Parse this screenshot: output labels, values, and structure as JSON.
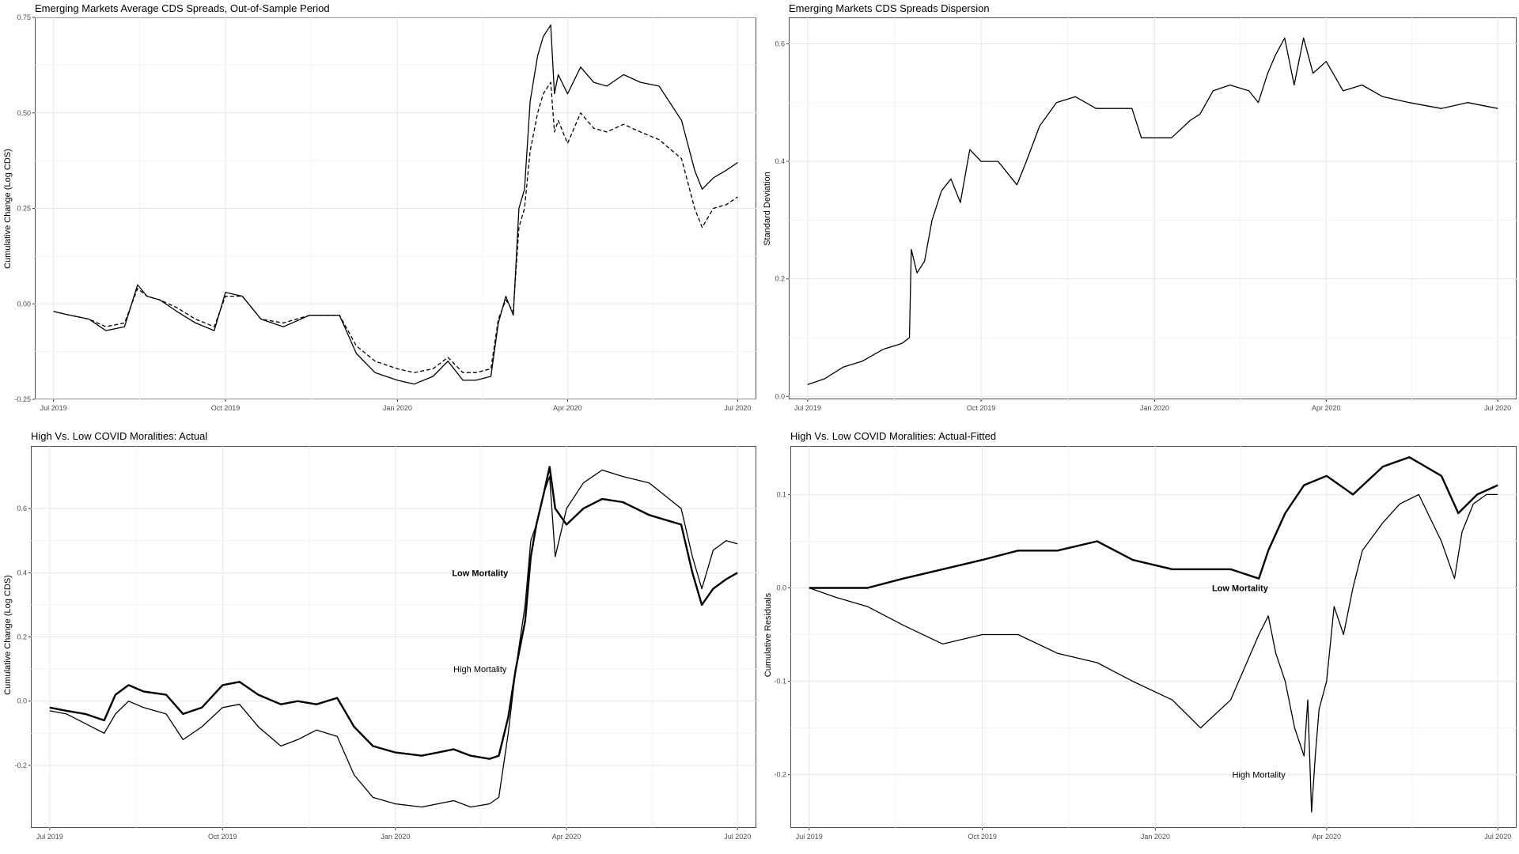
{
  "chart_data": [
    {
      "type": "line",
      "title": "Emerging Markets Average CDS Spreads, Out-of-Sample Period",
      "xlabel": "",
      "ylabel": "Cumulative Change (Log CDS)",
      "x_ticks": [
        "Jul 2019",
        "Oct 2019",
        "Jan 2020",
        "Apr 2020",
        "Jul 2020"
      ],
      "y_ticks": [
        "-0.25",
        "0.00",
        "0.25",
        "0.50",
        "0.75"
      ],
      "xlim": [
        "2019-06-21",
        "2020-07-11"
      ],
      "ylim": [
        -0.25,
        0.75
      ],
      "grid": true,
      "series": [
        {
          "style": "solid",
          "width": 1.3,
          "x": [
            "2019-07-01",
            "2019-07-10",
            "2019-07-20",
            "2019-07-29",
            "2019-08-08",
            "2019-08-15",
            "2019-08-20",
            "2019-08-27",
            "2019-09-05",
            "2019-09-15",
            "2019-09-25",
            "2019-10-01",
            "2019-10-10",
            "2019-10-20",
            "2019-11-01",
            "2019-11-15",
            "2019-12-01",
            "2019-12-10",
            "2019-12-20",
            "2020-01-01",
            "2020-01-10",
            "2020-01-20",
            "2020-01-28",
            "2020-02-05",
            "2020-02-12",
            "2020-02-20",
            "2020-02-24",
            "2020-02-28",
            "2020-03-03",
            "2020-03-06",
            "2020-03-09",
            "2020-03-12",
            "2020-03-16",
            "2020-03-19",
            "2020-03-23",
            "2020-03-25",
            "2020-03-27",
            "2020-04-01",
            "2020-04-08",
            "2020-04-15",
            "2020-04-22",
            "2020-05-01",
            "2020-05-10",
            "2020-05-20",
            "2020-06-01",
            "2020-06-08",
            "2020-06-12",
            "2020-06-18",
            "2020-06-25",
            "2020-07-01"
          ],
          "y": [
            -0.02,
            -0.03,
            -0.04,
            -0.07,
            -0.06,
            0.05,
            0.02,
            0.01,
            -0.02,
            -0.05,
            -0.07,
            0.03,
            0.02,
            -0.04,
            -0.06,
            -0.03,
            -0.03,
            -0.13,
            -0.18,
            -0.2,
            -0.21,
            -0.19,
            -0.15,
            -0.2,
            -0.2,
            -0.19,
            -0.05,
            0.02,
            -0.03,
            0.25,
            0.3,
            0.53,
            0.65,
            0.7,
            0.73,
            0.55,
            0.6,
            0.55,
            0.62,
            0.58,
            0.57,
            0.6,
            0.58,
            0.57,
            0.48,
            0.35,
            0.3,
            0.33,
            0.35,
            0.37
          ]
        },
        {
          "style": "dashed",
          "width": 1.3,
          "x": [
            "2019-07-01",
            "2019-07-10",
            "2019-07-20",
            "2019-07-29",
            "2019-08-08",
            "2019-08-15",
            "2019-08-20",
            "2019-08-27",
            "2019-09-05",
            "2019-09-15",
            "2019-09-25",
            "2019-10-01",
            "2019-10-10",
            "2019-10-20",
            "2019-11-01",
            "2019-11-15",
            "2019-12-01",
            "2019-12-10",
            "2019-12-20",
            "2020-01-01",
            "2020-01-10",
            "2020-01-20",
            "2020-01-28",
            "2020-02-05",
            "2020-02-12",
            "2020-02-20",
            "2020-02-24",
            "2020-02-28",
            "2020-03-03",
            "2020-03-06",
            "2020-03-09",
            "2020-03-12",
            "2020-03-16",
            "2020-03-19",
            "2020-03-23",
            "2020-03-25",
            "2020-03-27",
            "2020-04-01",
            "2020-04-08",
            "2020-04-15",
            "2020-04-22",
            "2020-05-01",
            "2020-05-10",
            "2020-05-20",
            "2020-06-01",
            "2020-06-08",
            "2020-06-12",
            "2020-06-18",
            "2020-06-25",
            "2020-07-01"
          ],
          "y": [
            -0.02,
            -0.03,
            -0.04,
            -0.06,
            -0.05,
            0.04,
            0.02,
            0.01,
            -0.01,
            -0.04,
            -0.06,
            0.02,
            0.02,
            -0.04,
            -0.05,
            -0.03,
            -0.03,
            -0.11,
            -0.15,
            -0.17,
            -0.18,
            -0.17,
            -0.14,
            -0.18,
            -0.18,
            -0.17,
            -0.04,
            0.01,
            -0.02,
            0.2,
            0.25,
            0.4,
            0.5,
            0.55,
            0.58,
            0.45,
            0.48,
            0.42,
            0.5,
            0.46,
            0.45,
            0.47,
            0.45,
            0.43,
            0.38,
            0.25,
            0.2,
            0.25,
            0.26,
            0.28
          ]
        }
      ]
    },
    {
      "type": "line",
      "title": "Emerging Markets CDS Spreads Dispersion",
      "xlabel": "",
      "ylabel": "Standard Deviation",
      "x_ticks": [
        "Jul 2019",
        "Oct 2019",
        "Jan 2020",
        "Apr 2020",
        "Jul 2020"
      ],
      "y_ticks": [
        "0.0",
        "0.2",
        "0.4",
        "0.6"
      ],
      "xlim": [
        "2019-06-21",
        "2020-07-11"
      ],
      "ylim": [
        -0.005,
        0.645
      ],
      "grid": true,
      "series": [
        {
          "style": "solid",
          "width": 1.3,
          "x": [
            "2019-07-01",
            "2019-07-10",
            "2019-07-20",
            "2019-07-30",
            "2019-08-10",
            "2019-08-20",
            "2019-08-24",
            "2019-08-25",
            "2019-08-28",
            "2019-09-01",
            "2019-09-05",
            "2019-09-10",
            "2019-09-15",
            "2019-09-20",
            "2019-09-25",
            "2019-10-01",
            "2019-10-10",
            "2019-10-20",
            "2019-10-25",
            "2019-11-01",
            "2019-11-10",
            "2019-11-20",
            "2019-12-01",
            "2019-12-10",
            "2019-12-20",
            "2019-12-25",
            "2020-01-01",
            "2020-01-10",
            "2020-01-20",
            "2020-01-25",
            "2020-02-01",
            "2020-02-10",
            "2020-02-20",
            "2020-02-25",
            "2020-03-01",
            "2020-03-05",
            "2020-03-10",
            "2020-03-15",
            "2020-03-20",
            "2020-03-25",
            "2020-04-01",
            "2020-04-10",
            "2020-04-20",
            "2020-05-01",
            "2020-05-15",
            "2020-06-01",
            "2020-06-15",
            "2020-07-01"
          ],
          "y": [
            0.02,
            0.03,
            0.05,
            0.06,
            0.08,
            0.09,
            0.1,
            0.25,
            0.21,
            0.23,
            0.3,
            0.35,
            0.37,
            0.33,
            0.42,
            0.4,
            0.4,
            0.36,
            0.4,
            0.46,
            0.5,
            0.51,
            0.49,
            0.49,
            0.49,
            0.44,
            0.44,
            0.44,
            0.47,
            0.48,
            0.52,
            0.53,
            0.52,
            0.5,
            0.55,
            0.58,
            0.61,
            0.53,
            0.61,
            0.55,
            0.57,
            0.52,
            0.53,
            0.51,
            0.5,
            0.49,
            0.5,
            0.49
          ]
        }
      ]
    },
    {
      "type": "line",
      "title": "High Vs. Low COVID Moralities: Actual",
      "xlabel": "",
      "ylabel": "Cumulative Change (Log CDS)",
      "x_ticks": [
        "Jul 2019",
        "Oct 2019",
        "Jan 2020",
        "Apr 2020",
        "Jul 2020"
      ],
      "y_ticks": [
        "-0.2",
        "0.0",
        "0.2",
        "0.4",
        "0.6"
      ],
      "xlim": [
        "2019-06-21",
        "2020-07-11"
      ],
      "ylim": [
        -0.395,
        0.795
      ],
      "grid": true,
      "annotations": [
        {
          "text": "Low Mortality",
          "x": "2020-02-15",
          "y": 0.4,
          "bold": true
        },
        {
          "text": "High Mortality",
          "x": "2020-02-15",
          "y": 0.1,
          "bold": false
        }
      ],
      "series": [
        {
          "name": "Low Mortality",
          "style": "solid",
          "width": 2.4,
          "x": [
            "2019-07-01",
            "2019-07-10",
            "2019-07-20",
            "2019-07-30",
            "2019-08-05",
            "2019-08-12",
            "2019-08-20",
            "2019-09-01",
            "2019-09-10",
            "2019-09-20",
            "2019-10-01",
            "2019-10-10",
            "2019-10-20",
            "2019-11-01",
            "2019-11-10",
            "2019-11-20",
            "2019-12-01",
            "2019-12-10",
            "2019-12-20",
            "2020-01-01",
            "2020-01-15",
            "2020-02-01",
            "2020-02-10",
            "2020-02-20",
            "2020-02-25",
            "2020-03-01",
            "2020-03-05",
            "2020-03-10",
            "2020-03-13",
            "2020-03-16",
            "2020-03-20",
            "2020-03-23",
            "2020-03-26",
            "2020-04-01",
            "2020-04-10",
            "2020-04-20",
            "2020-05-01",
            "2020-05-15",
            "2020-06-01",
            "2020-06-07",
            "2020-06-12",
            "2020-06-18",
            "2020-06-25",
            "2020-07-01"
          ],
          "y": [
            -0.02,
            -0.03,
            -0.04,
            -0.06,
            0.02,
            0.05,
            0.03,
            0.02,
            -0.04,
            -0.02,
            0.05,
            0.06,
            0.02,
            -0.01,
            0.0,
            -0.01,
            0.01,
            -0.08,
            -0.14,
            -0.16,
            -0.17,
            -0.15,
            -0.17,
            -0.18,
            -0.17,
            -0.05,
            0.1,
            0.25,
            0.45,
            0.55,
            0.65,
            0.73,
            0.6,
            0.55,
            0.6,
            0.63,
            0.62,
            0.58,
            0.55,
            0.4,
            0.3,
            0.35,
            0.38,
            0.4
          ]
        },
        {
          "name": "High Mortality",
          "style": "solid",
          "width": 1.3,
          "x": [
            "2019-07-01",
            "2019-07-10",
            "2019-07-20",
            "2019-07-30",
            "2019-08-05",
            "2019-08-12",
            "2019-08-20",
            "2019-09-01",
            "2019-09-10",
            "2019-09-20",
            "2019-10-01",
            "2019-10-10",
            "2019-10-20",
            "2019-11-01",
            "2019-11-10",
            "2019-11-20",
            "2019-12-01",
            "2019-12-10",
            "2019-12-20",
            "2020-01-01",
            "2020-01-15",
            "2020-02-01",
            "2020-02-10",
            "2020-02-20",
            "2020-02-25",
            "2020-03-01",
            "2020-03-05",
            "2020-03-10",
            "2020-03-13",
            "2020-03-16",
            "2020-03-20",
            "2020-03-23",
            "2020-03-26",
            "2020-04-01",
            "2020-04-10",
            "2020-04-20",
            "2020-05-01",
            "2020-05-15",
            "2020-06-01",
            "2020-06-07",
            "2020-06-12",
            "2020-06-18",
            "2020-06-25",
            "2020-07-01"
          ],
          "y": [
            -0.03,
            -0.04,
            -0.07,
            -0.1,
            -0.04,
            0.0,
            -0.02,
            -0.04,
            -0.12,
            -0.08,
            -0.02,
            -0.01,
            -0.08,
            -0.14,
            -0.12,
            -0.09,
            -0.11,
            -0.23,
            -0.3,
            -0.32,
            -0.33,
            -0.31,
            -0.33,
            -0.32,
            -0.3,
            -0.1,
            0.1,
            0.3,
            0.5,
            0.55,
            0.65,
            0.7,
            0.45,
            0.6,
            0.68,
            0.72,
            0.7,
            0.68,
            0.6,
            0.45,
            0.35,
            0.47,
            0.5,
            0.49
          ]
        }
      ]
    },
    {
      "type": "line",
      "title": "High Vs. Low COVID Moralities: Actual-Fitted",
      "xlabel": "",
      "ylabel": "Cumulative Residuals",
      "x_ticks": [
        "Jul 2019",
        "Oct 2019",
        "Jan 2020",
        "Apr 2020",
        "Jul 2020"
      ],
      "y_ticks": [
        "-0.2",
        "-0.1",
        "0.0",
        "0.1"
      ],
      "xlim": [
        "2019-06-21",
        "2020-07-11"
      ],
      "ylim": [
        -0.257,
        0.152
      ],
      "grid": true,
      "annotations": [
        {
          "text": "Low Mortality",
          "x": "2020-02-15",
          "y": 0.0,
          "bold": true
        },
        {
          "text": "High Mortality",
          "x": "2020-02-25",
          "y": -0.2,
          "bold": false
        }
      ],
      "series": [
        {
          "name": "Low Mortality",
          "style": "solid",
          "width": 2.4,
          "x": [
            "2019-07-01",
            "2019-07-15",
            "2019-08-01",
            "2019-08-20",
            "2019-09-10",
            "2019-10-01",
            "2019-10-20",
            "2019-11-10",
            "2019-12-01",
            "2019-12-20",
            "2020-01-10",
            "2020-01-25",
            "2020-02-10",
            "2020-02-25",
            "2020-03-01",
            "2020-03-10",
            "2020-03-20",
            "2020-04-01",
            "2020-04-15",
            "2020-05-01",
            "2020-05-15",
            "2020-06-01",
            "2020-06-10",
            "2020-06-20",
            "2020-07-01"
          ],
          "y": [
            0.0,
            0.0,
            0.0,
            0.01,
            0.02,
            0.03,
            0.04,
            0.04,
            0.05,
            0.03,
            0.02,
            0.02,
            0.02,
            0.01,
            0.04,
            0.08,
            0.11,
            0.12,
            0.1,
            0.13,
            0.14,
            0.12,
            0.08,
            0.1,
            0.11
          ]
        },
        {
          "name": "High Mortality",
          "style": "solid",
          "width": 1.3,
          "x": [
            "2019-07-01",
            "2019-07-15",
            "2019-08-01",
            "2019-08-20",
            "2019-09-10",
            "2019-10-01",
            "2019-10-20",
            "2019-11-10",
            "2019-12-01",
            "2019-12-20",
            "2020-01-10",
            "2020-01-25",
            "2020-02-10",
            "2020-02-25",
            "2020-03-01",
            "2020-03-05",
            "2020-03-10",
            "2020-03-15",
            "2020-03-20",
            "2020-03-22",
            "2020-03-24",
            "2020-03-26",
            "2020-03-28",
            "2020-04-01",
            "2020-04-05",
            "2020-04-10",
            "2020-04-15",
            "2020-04-20",
            "2020-05-01",
            "2020-05-10",
            "2020-05-20",
            "2020-06-01",
            "2020-06-08",
            "2020-06-12",
            "2020-06-18",
            "2020-06-25",
            "2020-07-01"
          ],
          "y": [
            0.0,
            -0.01,
            -0.02,
            -0.04,
            -0.06,
            -0.05,
            -0.05,
            -0.07,
            -0.08,
            -0.1,
            -0.12,
            -0.15,
            -0.12,
            -0.05,
            -0.03,
            -0.07,
            -0.1,
            -0.15,
            -0.18,
            -0.12,
            -0.24,
            -0.18,
            -0.13,
            -0.1,
            -0.02,
            -0.05,
            0.0,
            0.04,
            0.07,
            0.09,
            0.1,
            0.05,
            0.01,
            0.06,
            0.09,
            0.1,
            0.1
          ]
        }
      ]
    }
  ]
}
